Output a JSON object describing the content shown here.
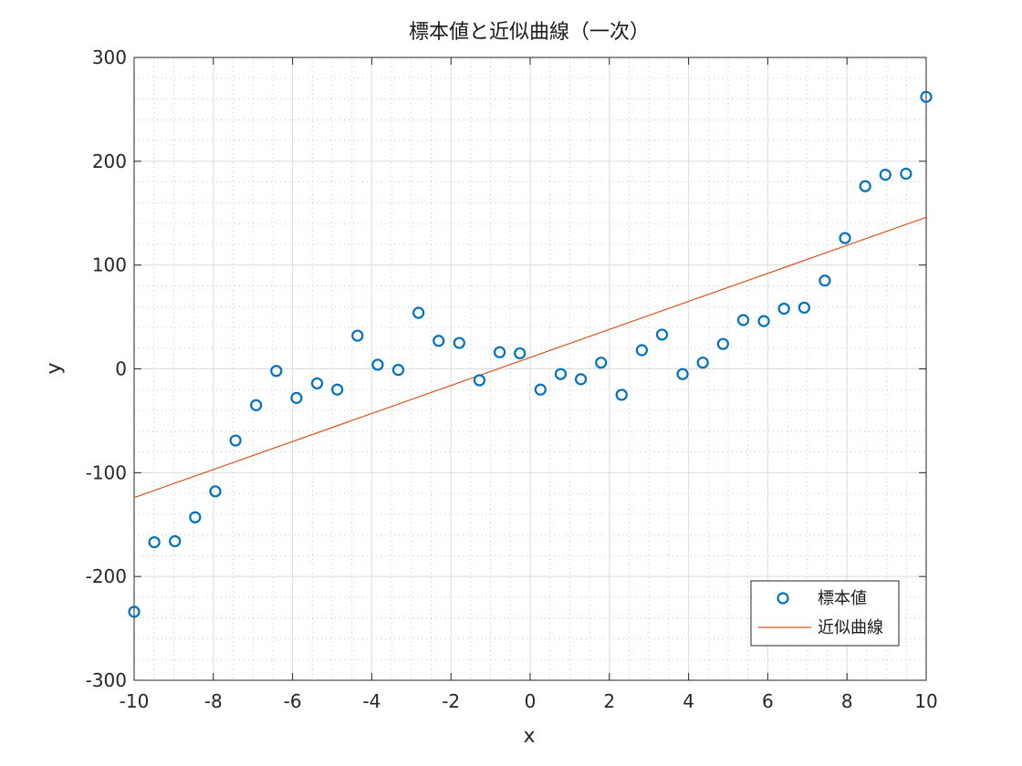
{
  "chart_data": {
    "type": "scatter",
    "title": "標本値と近似曲線（一次）",
    "xlabel": "x",
    "ylabel": "y",
    "xlim": [
      -10,
      10
    ],
    "ylim": [
      -300,
      300
    ],
    "xticks": [
      -10,
      -8,
      -6,
      -4,
      -2,
      0,
      2,
      4,
      6,
      8,
      10
    ],
    "yticks": [
      -300,
      -200,
      -100,
      0,
      100,
      200,
      300
    ],
    "grid": true,
    "minor_grid": true,
    "legend_position": "bottom-right",
    "series": [
      {
        "name": "標本値",
        "kind": "scatter",
        "marker": "circle",
        "color": "#0072BD",
        "x": [
          -10.0,
          -9.49,
          -8.97,
          -8.46,
          -7.95,
          -7.44,
          -6.92,
          -6.41,
          -5.9,
          -5.38,
          -4.87,
          -4.36,
          -3.85,
          -3.33,
          -2.82,
          -2.31,
          -1.79,
          -1.28,
          -0.77,
          -0.26,
          0.26,
          0.77,
          1.28,
          1.79,
          2.31,
          2.82,
          3.33,
          3.85,
          4.36,
          4.87,
          5.38,
          5.9,
          6.41,
          6.92,
          7.44,
          7.95,
          8.46,
          8.97,
          9.49,
          10.0
        ],
        "y": [
          -234,
          -167,
          -166,
          -143,
          -118,
          -69,
          -35,
          -2,
          -28,
          -14,
          -20,
          32,
          4,
          -1,
          54,
          27,
          25,
          -11,
          16,
          15,
          -20,
          -5,
          -10,
          6,
          -25,
          18,
          33,
          -5,
          6,
          24,
          47,
          46,
          58,
          59,
          85,
          126,
          176,
          187,
          188,
          262
        ]
      },
      {
        "name": "近似曲線",
        "kind": "line",
        "color": "#D95319",
        "x": [
          -10,
          10
        ],
        "y": [
          -124,
          146
        ]
      }
    ]
  }
}
